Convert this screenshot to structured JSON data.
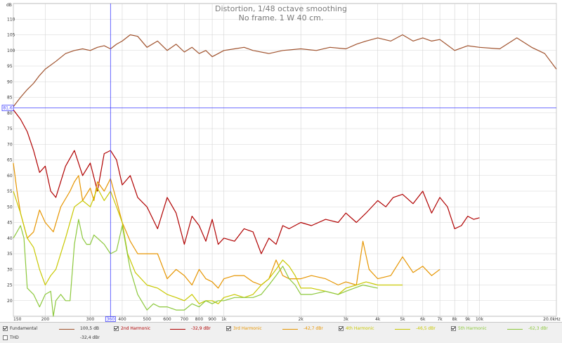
{
  "colors": {
    "fundamental": "#a0522d",
    "h2": "#b00000",
    "h3": "#e69500",
    "h4": "#c8c800",
    "h5": "#8cc83c",
    "cursor": "#4040ff",
    "grid": "#d4d4d4"
  },
  "cursor": {
    "x_label": "360",
    "y_label": "81,6"
  },
  "legend": {
    "items": [
      {
        "label": "Fundamental",
        "value": "100,5 dB",
        "checked": true,
        "color": "#a0522d"
      },
      {
        "label": "2nd Harmonic",
        "value": "-32,9 dBr",
        "checked": true,
        "color": "#b00000"
      },
      {
        "label": "3rd Harmonic",
        "value": "-42,7 dBr",
        "checked": true,
        "color": "#e69500"
      },
      {
        "label": "4th Harmonic",
        "value": "-46,5 dBr",
        "checked": true,
        "color": "#c8c800"
      },
      {
        "label": "5th Harmonic",
        "value": "-62,3 dBr",
        "checked": true,
        "color": "#8cc83c"
      },
      {
        "label": "THD",
        "value": "-32,4 dBr",
        "checked": false,
        "color": ""
      }
    ]
  },
  "chart_data": {
    "type": "line",
    "title": "Distortion, 1/48 octave smoothing",
    "subtitle": "No frame. 1 W 40 cm.",
    "xlabel": "Hz",
    "ylabel": "dB",
    "x_scale": "log",
    "xlim": [
      150,
      20000
    ],
    "ylim": [
      15,
      115
    ],
    "y_ticks": [
      "20",
      "25",
      "30",
      "35",
      "40",
      "45",
      "50",
      "55",
      "60",
      "65",
      "70",
      "75",
      "80",
      "85",
      "90",
      "95",
      "100",
      "105",
      "110"
    ],
    "x_ticks": [
      {
        "v": 150,
        "label": "150"
      },
      {
        "v": 200,
        "label": "200"
      },
      {
        "v": 300,
        "label": "300"
      },
      {
        "v": 400,
        "label": "400"
      },
      {
        "v": 500,
        "label": "500"
      },
      {
        "v": 600,
        "label": "600"
      },
      {
        "v": 700,
        "label": "700"
      },
      {
        "v": 800,
        "label": "800"
      },
      {
        "v": 900,
        "label": "900"
      },
      {
        "v": 1000,
        "label": "1k"
      },
      {
        "v": 2000,
        "label": "2k"
      },
      {
        "v": 3000,
        "label": "3k"
      },
      {
        "v": 4000,
        "label": "4k"
      },
      {
        "v": 5000,
        "label": "5k"
      },
      {
        "v": 6000,
        "label": "6k"
      },
      {
        "v": 7000,
        "label": "7k"
      },
      {
        "v": 8000,
        "label": "8k"
      },
      {
        "v": 9000,
        "label": "9k"
      },
      {
        "v": 10000,
        "label": "10k"
      },
      {
        "v": 20000,
        "label": "20.0k"
      }
    ],
    "grid": true,
    "cursor": {
      "x": 360,
      "y": 81.6
    },
    "series": [
      {
        "name": "Fundamental",
        "x": [
          150,
          160,
          170,
          180,
          190,
          200,
          220,
          240,
          260,
          280,
          300,
          320,
          340,
          360,
          380,
          400,
          430,
          460,
          500,
          550,
          600,
          650,
          700,
          750,
          800,
          850,
          900,
          950,
          1000,
          1100,
          1200,
          1300,
          1500,
          1700,
          2000,
          2300,
          2600,
          3000,
          3300,
          3600,
          4000,
          4500,
          5000,
          5500,
          6000,
          6500,
          7000,
          8000,
          9000,
          10000,
          12000,
          14000,
          16000,
          18000,
          20000
        ],
        "y": [
          82,
          85,
          87.5,
          89.5,
          92,
          94,
          96.5,
          99,
          100,
          100.5,
          100,
          101,
          101.5,
          100.5,
          102,
          103,
          105,
          104.5,
          101,
          103,
          100,
          102,
          99.5,
          101,
          99,
          100,
          98,
          99,
          100,
          100.5,
          101,
          100,
          99,
          100,
          100.5,
          100,
          101,
          100.5,
          102,
          103,
          104,
          103,
          105,
          103,
          104,
          103,
          103.5,
          100,
          101.5,
          101,
          100.5,
          104,
          101,
          99,
          94
        ]
      },
      {
        "name": "2nd Harmonic",
        "x": [
          150,
          160,
          170,
          180,
          190,
          200,
          210,
          220,
          240,
          260,
          280,
          300,
          320,
          340,
          360,
          380,
          400,
          430,
          460,
          500,
          550,
          600,
          650,
          700,
          750,
          800,
          850,
          900,
          950,
          1000,
          1100,
          1200,
          1300,
          1400,
          1500,
          1600,
          1700,
          1800,
          2000,
          2200,
          2500,
          2800,
          3000,
          3300,
          3600,
          4000,
          4300,
          4600,
          5000,
          5500,
          6000,
          6500,
          7000,
          7500,
          8000,
          8500,
          9000,
          9500,
          10000
        ],
        "y": [
          81,
          78,
          74,
          68,
          61,
          63,
          55,
          53,
          63,
          68,
          60,
          64,
          55,
          67,
          68,
          65,
          57,
          60,
          53,
          50,
          43,
          53,
          48,
          38,
          47,
          44,
          39,
          46,
          38,
          40,
          39,
          43,
          42,
          35,
          40,
          38,
          44,
          43,
          45,
          44,
          46,
          45,
          48,
          45,
          48,
          52,
          50,
          53,
          54,
          51,
          55,
          48,
          53,
          50,
          43,
          44,
          47,
          46,
          46.5
        ]
      },
      {
        "name": "3rd Harmonic",
        "x": [
          150,
          155,
          160,
          170,
          180,
          190,
          200,
          215,
          230,
          250,
          260,
          270,
          280,
          300,
          310,
          320,
          340,
          360,
          380,
          400,
          430,
          460,
          500,
          550,
          600,
          650,
          700,
          750,
          800,
          850,
          900,
          950,
          1000,
          1100,
          1200,
          1300,
          1400,
          1500,
          1600,
          1700,
          1800,
          2000,
          2200,
          2500,
          2800,
          3000,
          3300,
          3500,
          3700,
          4000,
          4500,
          5000,
          5500,
          6000,
          6500,
          7000
        ],
        "y": [
          64,
          55,
          48,
          40,
          42,
          49,
          45,
          42,
          50,
          55,
          58,
          60,
          52,
          56,
          52,
          58,
          55,
          59,
          52,
          45,
          39,
          35,
          35,
          35,
          27,
          30,
          28,
          25,
          30,
          27,
          26,
          24,
          27,
          28,
          28,
          26,
          25,
          27,
          33,
          28,
          27,
          27,
          28,
          27,
          25,
          26,
          25,
          39,
          30,
          27,
          28,
          34,
          29,
          31,
          28,
          30
        ]
      },
      {
        "name": "4th Harmonic",
        "x": [
          150,
          160,
          170,
          180,
          190,
          200,
          210,
          220,
          240,
          260,
          280,
          300,
          320,
          340,
          360,
          380,
          400,
          420,
          450,
          500,
          550,
          600,
          650,
          700,
          750,
          800,
          850,
          900,
          950,
          1000,
          1100,
          1200,
          1300,
          1400,
          1500,
          1600,
          1700,
          1800,
          1900,
          2000,
          2200,
          2500,
          2800,
          3000,
          3300,
          3600,
          4000,
          4500,
          5000
        ],
        "y": [
          55,
          48,
          40,
          37,
          30,
          25,
          28,
          30,
          40,
          50,
          52,
          50,
          56,
          52,
          55,
          50,
          45,
          35,
          29,
          25,
          24,
          22,
          21,
          20,
          22,
          19,
          20,
          20,
          19,
          21,
          22,
          21,
          22,
          25,
          27,
          30,
          33,
          31,
          28,
          24,
          24,
          23,
          22,
          24,
          25,
          26,
          25,
          25,
          25
        ]
      },
      {
        "name": "5th Harmonic",
        "x": [
          150,
          155,
          160,
          165,
          170,
          180,
          190,
          200,
          210,
          215,
          220,
          230,
          240,
          250,
          260,
          270,
          280,
          290,
          300,
          310,
          320,
          340,
          360,
          380,
          400,
          430,
          460,
          500,
          530,
          560,
          600,
          650,
          700,
          750,
          800,
          850,
          900,
          950,
          1000,
          1100,
          1200,
          1300,
          1400,
          1500,
          1600,
          1700,
          1800,
          1900,
          2000,
          2200,
          2500,
          2800,
          3000,
          3500,
          4000
        ],
        "y": [
          40,
          42,
          44,
          40,
          24,
          22,
          18,
          22,
          23,
          15,
          20,
          22,
          20,
          20,
          38,
          46,
          40,
          38,
          38,
          41,
          40,
          38,
          35,
          36,
          44,
          30,
          22,
          17,
          19,
          18,
          18,
          17,
          17,
          19,
          18,
          20,
          19,
          20,
          20,
          21,
          21,
          21,
          22,
          25,
          28,
          31,
          27,
          25,
          22,
          22,
          23,
          22,
          23,
          25,
          24
        ]
      }
    ]
  }
}
